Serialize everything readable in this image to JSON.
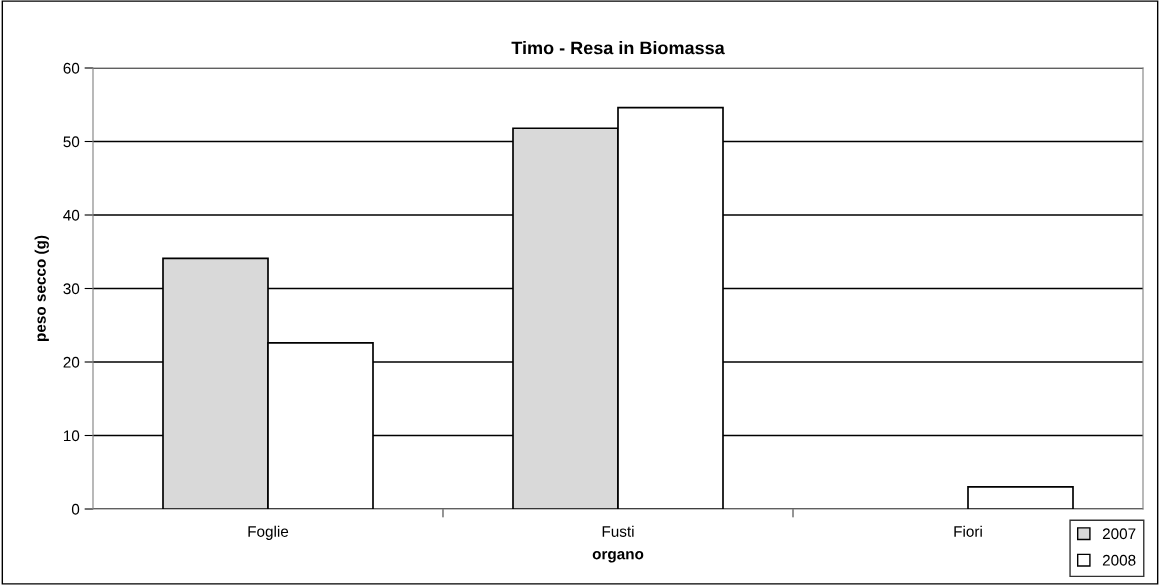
{
  "chart_data": {
    "type": "bar",
    "title": "Timo - Resa in Biomassa",
    "xlabel": "organo",
    "ylabel": "peso secco (g)",
    "categories": [
      "Foglie",
      "Fusti",
      "Fiori"
    ],
    "series": [
      {
        "name": "2007",
        "color": "#d9d9d9",
        "values": [
          34.1,
          51.8,
          null
        ]
      },
      {
        "name": "2008",
        "color": "#ffffff",
        "values": [
          22.6,
          54.6,
          3.0
        ]
      }
    ],
    "ylim": [
      0,
      60
    ],
    "yticks": [
      0,
      10,
      20,
      30,
      40,
      50,
      60
    ],
    "grid": "y",
    "legend": "bottom right"
  }
}
